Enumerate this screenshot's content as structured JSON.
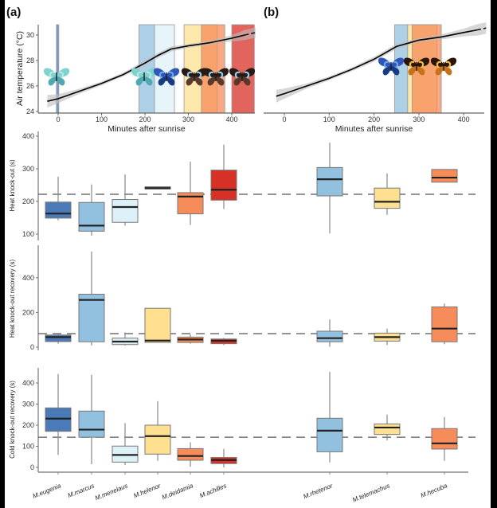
{
  "panel_labels": [
    "(a)",
    "(b)"
  ],
  "chart_data": [
    {
      "type": "line",
      "panel": "(a)",
      "xlabel": "Minutes after sunrise",
      "ylabel": "Air temperature (°C)",
      "xticks": [
        0,
        100,
        200,
        300,
        400
      ],
      "yticks": [
        24,
        26,
        28,
        30
      ],
      "ylim": [
        23.9,
        31
      ],
      "xlim": [
        -45,
        455
      ],
      "curve": {
        "x": [
          -25,
          0,
          50,
          100,
          150,
          200,
          230,
          260,
          300,
          350,
          400,
          430,
          455
        ],
        "y": [
          24.8,
          25.0,
          25.6,
          26.2,
          26.9,
          27.8,
          28.4,
          28.9,
          29.15,
          29.4,
          29.75,
          30.0,
          30.2
        ]
      },
      "confidence_band_halfwidth": [
        0.5,
        0.35,
        0.2,
        0.15,
        0.15,
        0.2,
        0.2,
        0.2,
        0.15,
        0.15,
        0.25,
        0.4,
        0.4
      ],
      "activity_windows": [
        {
          "species": "M.eugenia",
          "start": -4,
          "end": 0,
          "color": "#4a7ab8"
        },
        {
          "species": "M.marcus",
          "start": 186,
          "end": 222,
          "color": "#92c0df"
        },
        {
          "species": "M.menelaus",
          "start": 222,
          "end": 268,
          "color": "#dff1f8"
        },
        {
          "species": "M.helenor",
          "start": 290,
          "end": 366,
          "color": "#fee090"
        },
        {
          "species": "M.deidamia",
          "start": 330,
          "end": 384,
          "color": "#f68c5a"
        },
        {
          "species": "M.achilles",
          "start": 400,
          "end": 452,
          "color": "#d73027"
        }
      ]
    },
    {
      "type": "line",
      "panel": "(b)",
      "xlabel": "Minutes after sunrise",
      "xticks": [
        0,
        100,
        200,
        300,
        400
      ],
      "ylim": [
        23.9,
        31
      ],
      "xlim": [
        -45,
        445
      ],
      "curve": {
        "x": [
          -18,
          0,
          50,
          100,
          150,
          200,
          230,
          250,
          300,
          350,
          400,
          430,
          450
        ],
        "y": [
          25.2,
          25.4,
          26.0,
          26.6,
          27.3,
          28.1,
          28.7,
          29.1,
          29.6,
          29.85,
          30.2,
          30.4,
          30.55
        ]
      },
      "confidence_band_halfwidth": [
        0.5,
        0.4,
        0.2,
        0.15,
        0.15,
        0.2,
        0.2,
        0.2,
        0.15,
        0.2,
        0.3,
        0.45,
        0.45
      ],
      "activity_windows": [
        {
          "species": "M.rhetenor",
          "start": 246,
          "end": 275,
          "color": "#92c0df"
        },
        {
          "species": "M.telemachus",
          "start": 275,
          "end": 340,
          "color": "#fee090"
        },
        {
          "species": "M.hecuba",
          "start": 285,
          "end": 350,
          "color": "#f68c5a"
        }
      ]
    },
    {
      "type": "boxplot",
      "ylabel": "Heat knock-out (s)",
      "yticks": [
        100,
        200,
        300,
        400
      ],
      "ylim": [
        80,
        410
      ],
      "reference_line": 222,
      "boxes": [
        {
          "species": "M.eugenia",
          "min": 142,
          "q1": 149,
          "median": 163,
          "q3": 198,
          "max": 276
        },
        {
          "species": "M.marcus",
          "min": 95,
          "q1": 109,
          "median": 126,
          "q3": 197,
          "max": 252
        },
        {
          "species": "M.menelaus",
          "min": 126,
          "q1": 136,
          "median": 183,
          "q3": 206,
          "max": 283
        },
        {
          "species": "M.helenor",
          "min": 238,
          "q1": 238,
          "median": 241,
          "q3": 245,
          "max": 245
        },
        {
          "species": "M.deidamia",
          "min": 128,
          "q1": 162,
          "median": 215,
          "q3": 227,
          "max": 322
        },
        {
          "species": "M.achilles",
          "min": 177,
          "q1": 204,
          "median": 236,
          "q3": 296,
          "max": 374
        },
        {
          "species": "M.rhetenor",
          "min": 102,
          "q1": 217,
          "median": 268,
          "q3": 304,
          "max": 380
        },
        {
          "species": "M.telemachus",
          "min": 159,
          "q1": 179,
          "median": 199,
          "q3": 241,
          "max": 286
        },
        {
          "species": "M.hecuba",
          "min": 259,
          "q1": 259,
          "median": 273,
          "q3": 298,
          "max": 298
        }
      ]
    },
    {
      "type": "boxplot",
      "ylabel": "Heat knock-out recovery (s)",
      "yticks": [
        0,
        200,
        400
      ],
      "ylim": [
        -20,
        590
      ],
      "reference_line": 78,
      "boxes": [
        {
          "species": "M.eugenia",
          "min": 20,
          "q1": 32,
          "median": 58,
          "q3": 70,
          "max": 78
        },
        {
          "species": "M.marcus",
          "min": 9,
          "q1": 31,
          "median": 272,
          "q3": 305,
          "max": 551
        },
        {
          "species": "M.menelaus",
          "min": 9,
          "q1": 15,
          "median": 32,
          "q3": 52,
          "max": 85
        },
        {
          "species": "M.helenor",
          "min": 27,
          "q1": 27,
          "median": 38,
          "q3": 224,
          "max": 224
        },
        {
          "species": "M.deidamia",
          "min": 20,
          "q1": 27,
          "median": 44,
          "q3": 58,
          "max": 73
        },
        {
          "species": "M.achilles",
          "min": 12,
          "q1": 20,
          "median": 37,
          "q3": 47,
          "max": 53
        },
        {
          "species": "M.rhetenor",
          "min": 2,
          "q1": 31,
          "median": 52,
          "q3": 92,
          "max": 160
        },
        {
          "species": "M.telemachus",
          "min": 12,
          "q1": 35,
          "median": 58,
          "q3": 81,
          "max": 107
        },
        {
          "species": "M.hecuba",
          "min": 17,
          "q1": 31,
          "median": 107,
          "q3": 232,
          "max": 252
        }
      ]
    },
    {
      "type": "boxplot",
      "ylabel": "Cold knock-out recovery (s)",
      "yticks": [
        0,
        100,
        200,
        300,
        400
      ],
      "ylim": [
        -20,
        470
      ],
      "reference_line": 143,
      "categories": [
        "M.eugenia",
        "M.marcus",
        "M.menelaus",
        "M.helenor",
        "M.deidamia",
        "M.achilles",
        "M.rhetenor",
        "M.telemachus",
        "M.hecuba"
      ],
      "boxes": [
        {
          "species": "M.eugenia",
          "min": 59,
          "q1": 171,
          "median": 231,
          "q3": 282,
          "max": 443
        },
        {
          "species": "M.marcus",
          "min": 15,
          "q1": 143,
          "median": 179,
          "q3": 267,
          "max": 439
        },
        {
          "species": "M.menelaus",
          "min": 11,
          "q1": 25,
          "median": 59,
          "q3": 101,
          "max": 210
        },
        {
          "species": "M.helenor",
          "min": 31,
          "q1": 63,
          "median": 148,
          "q3": 200,
          "max": 314
        },
        {
          "species": "M.deidamia",
          "min": 3,
          "q1": 34,
          "median": 54,
          "q3": 89,
          "max": 119
        },
        {
          "species": "M.achilles",
          "min": 0,
          "q1": 18,
          "median": 35,
          "q3": 47,
          "max": 88
        },
        {
          "species": "M.rhetenor",
          "min": 24,
          "q1": 74,
          "median": 174,
          "q3": 233,
          "max": 453
        },
        {
          "species": "M.telemachus",
          "min": 128,
          "q1": 156,
          "median": 189,
          "q3": 206,
          "max": 250
        },
        {
          "species": "M.hecuba",
          "min": 31,
          "q1": 87,
          "median": 114,
          "q3": 184,
          "max": 239
        }
      ]
    }
  ],
  "species_colors": {
    "M.eugenia": "#4a7ab8",
    "M.marcus": "#92c0df",
    "M.menelaus": "#dff1f8",
    "M.helenor": "#fee090",
    "M.deidamia": "#f68c5a",
    "M.achilles": "#d73027",
    "M.rhetenor": "#92c0df",
    "M.telemachus": "#fee090",
    "M.hecuba": "#f68c5a"
  },
  "butterfly_icons": {
    "(a)": [
      "turquoise-morpho",
      "turquoise-morpho",
      "blue-morpho",
      "banded-morpho",
      "banded-morpho",
      "banded-morpho"
    ],
    "(b)": [
      "blue-morpho",
      "orange-morpho",
      "orange-morpho"
    ]
  }
}
